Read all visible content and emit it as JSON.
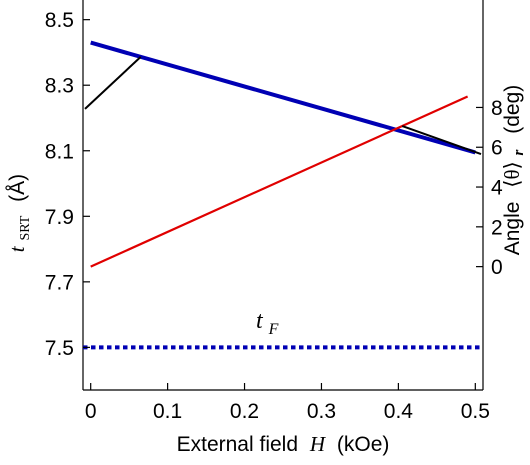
{
  "chart_data": {
    "type": "line",
    "x_axis": {
      "label_text": "External field",
      "label_symbol": "H",
      "label_unit": "(kOe)",
      "range": [
        -0.01,
        0.51
      ],
      "ticks": [
        0,
        0.1,
        0.2,
        0.3,
        0.4,
        0.5
      ],
      "tick_labels": [
        "0",
        "0.1",
        "0.2",
        "0.3",
        "0.4",
        "0.5"
      ]
    },
    "y_axis_left": {
      "label_symbol": "t",
      "label_subscript": "SRT",
      "label_unit": "(Å)",
      "range": [
        7.37,
        8.56
      ],
      "ticks": [
        7.5,
        7.7,
        7.9,
        8.1,
        8.3,
        8.5
      ],
      "tick_labels": [
        "7.5",
        "7.7",
        "7.9",
        "8.1",
        "8.3",
        "8.5"
      ]
    },
    "y_axis_right": {
      "label_text": "Angle",
      "label_symbol": "⟨θ⟩",
      "label_subscript": "r",
      "label_unit": "(deg)",
      "range": [
        -6.2,
        13.4
      ],
      "ticks": [
        0,
        2,
        4,
        6,
        8
      ],
      "tick_labels": [
        "0",
        "2",
        "4",
        "6",
        "8"
      ]
    },
    "series": [
      {
        "axis": "left",
        "color": "#0000b4",
        "style": "solid",
        "width": 4,
        "x": [
          0,
          0.5
        ],
        "y": [
          8.43,
          8.095
        ]
      },
      {
        "axis": "right",
        "color": "#e00000",
        "style": "solid",
        "width": 2.2,
        "x": [
          0,
          0.49
        ],
        "y": [
          0,
          8.55
        ]
      },
      {
        "axis": "left",
        "color": "#0000b4",
        "style": "dotted",
        "width": 4,
        "x": [
          -0.01,
          0.51
        ],
        "y": [
          7.5,
          7.5
        ]
      }
    ],
    "annotations": {
      "tF": {
        "symbol": "t",
        "subscript": "F"
      }
    },
    "grid": false
  }
}
